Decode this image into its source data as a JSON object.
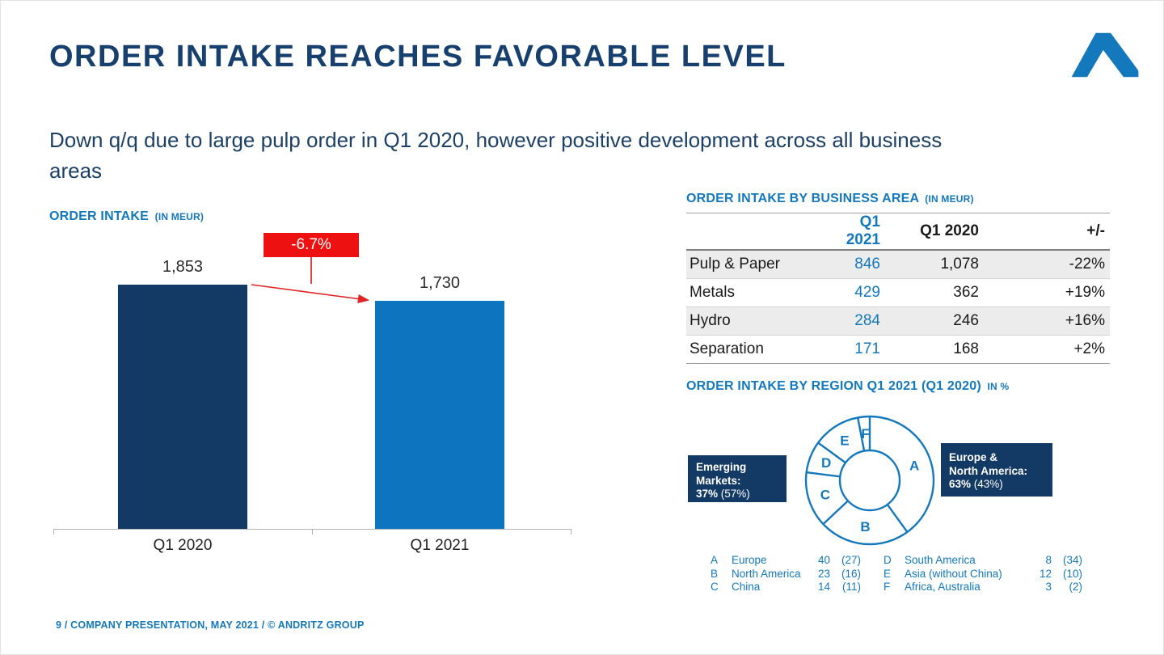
{
  "slide": {
    "title": "ORDER INTAKE REACHES FAVORABLE LEVEL",
    "subtitle_line1": "Down q/q due to large pulp order in Q1 2020, however positive development across all business",
    "subtitle_line2": "areas",
    "footer": "9 / COMPANY PRESENTATION, MAY 2021 / © ANDRITZ GROUP"
  },
  "colors": {
    "title_navy": "#17406f",
    "accent_blue": "#1478bd",
    "bar_2020": "#133a64",
    "bar_2021": "#0d74c0",
    "red": "#ee1111",
    "callout_navy": "#133a64",
    "row_shade": "#ececec"
  },
  "chart_data": [
    {
      "type": "bar",
      "title": "ORDER INTAKE",
      "unit_label": "(IN MEUR)",
      "categories": [
        "Q1 2020",
        "Q1 2021"
      ],
      "values": [
        1853,
        1730
      ],
      "value_labels": [
        "1,853",
        "1,730"
      ],
      "change_label": "-6.7%",
      "ylim": [
        0,
        1900
      ],
      "grid": false,
      "legend": "none"
    },
    {
      "type": "table",
      "title": "ORDER INTAKE BY BUSINESS AREA",
      "unit_label": "(IN MEUR)",
      "columns": [
        "",
        "Q1 2021",
        "Q1 2020",
        "+/-"
      ],
      "rows": [
        [
          "Pulp & Paper",
          "846",
          "1,078",
          "-22%"
        ],
        [
          "Metals",
          "429",
          "362",
          "+19%"
        ],
        [
          "Hydro",
          "284",
          "246",
          "+16%"
        ],
        [
          "Separation",
          "171",
          "168",
          "+2%"
        ]
      ]
    },
    {
      "type": "pie",
      "title": "ORDER INTAKE BY REGION Q1 2021 (Q1 2020)",
      "unit_label": "IN %",
      "donut": true,
      "start_angle": "12 o'clock, clockwise",
      "segments": [
        {
          "key": "A",
          "label": "Europe",
          "value": 40,
          "prev": 27
        },
        {
          "key": "B",
          "label": "North America",
          "value": 23,
          "prev": 16
        },
        {
          "key": "C",
          "label": "China",
          "value": 14,
          "prev": 11
        },
        {
          "key": "D",
          "label": "South America",
          "value": 8,
          "prev": 34
        },
        {
          "key": "E",
          "label": "Asia (without China)",
          "value": 12,
          "prev": 10
        },
        {
          "key": "F",
          "label": "Africa, Australia",
          "value": 3,
          "prev": 2
        }
      ],
      "callouts": {
        "left": {
          "line1": "Emerging",
          "line2": "Markets:",
          "bold": "37%",
          "paren": "(57%)"
        },
        "right": {
          "line1": "Europe &",
          "line2": "North America:",
          "bold": "63%",
          "paren": "(43%)"
        }
      }
    }
  ]
}
